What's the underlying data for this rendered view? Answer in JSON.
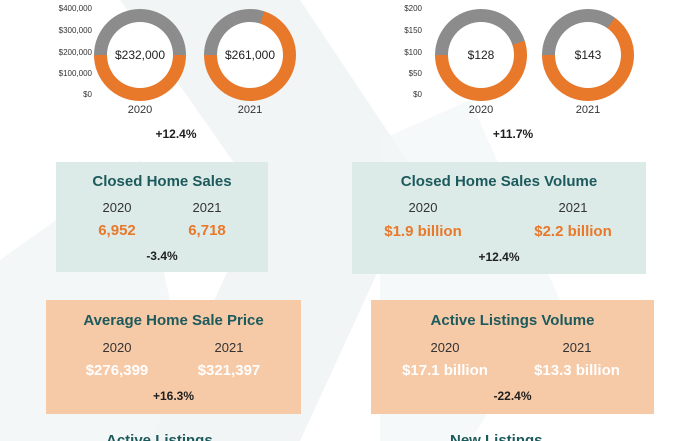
{
  "colors": {
    "accent_orange": "#e8782a",
    "gray_ring": "#8c8c8c",
    "teal_text": "#1d5a5c",
    "teal_panel": "#dcebe8",
    "peach_panel": "#f6c9a7"
  },
  "chart_data": [
    {
      "type": "donut",
      "y_axis_ticks": [
        "$400,000",
        "$300,000",
        "$200,000",
        "$100,000",
        "$0"
      ],
      "categories": [
        "2020",
        "2021"
      ],
      "values": [
        232000,
        261000
      ],
      "value_labels": [
        "$232,000",
        "$261,000"
      ],
      "change": "+12.4%"
    },
    {
      "type": "donut",
      "y_axis_ticks": [
        "$200",
        "$150",
        "$100",
        "$50",
        "$0"
      ],
      "categories": [
        "2020",
        "2021"
      ],
      "values": [
        128,
        143
      ],
      "value_labels": [
        "$128",
        "$143"
      ],
      "change": "+11.7%"
    }
  ],
  "cards": {
    "closed_sales": {
      "title": "Closed Home Sales",
      "year_a": "2020",
      "year_b": "2021",
      "value_a": "6,952",
      "value_b": "6,718",
      "change": "-3.4%"
    },
    "closed_volume": {
      "title": "Closed Home Sales Volume",
      "year_a": "2020",
      "year_b": "2021",
      "value_a": "$1.9 billion",
      "value_b": "$2.2 billion",
      "change": "+12.4%"
    },
    "avg_price": {
      "title": "Average Home Sale Price",
      "year_a": "2020",
      "year_b": "2021",
      "value_a": "$276,399",
      "value_b": "$321,397",
      "change": "+16.3%"
    },
    "active_volume": {
      "title": "Active Listings Volume",
      "year_a": "2020",
      "year_b": "2021",
      "value_a": "$17.1 billion",
      "value_b": "$13.3 billion",
      "change": "-22.4%"
    }
  },
  "cut_titles": {
    "left": "Active Listings",
    "right": "New Listings"
  }
}
